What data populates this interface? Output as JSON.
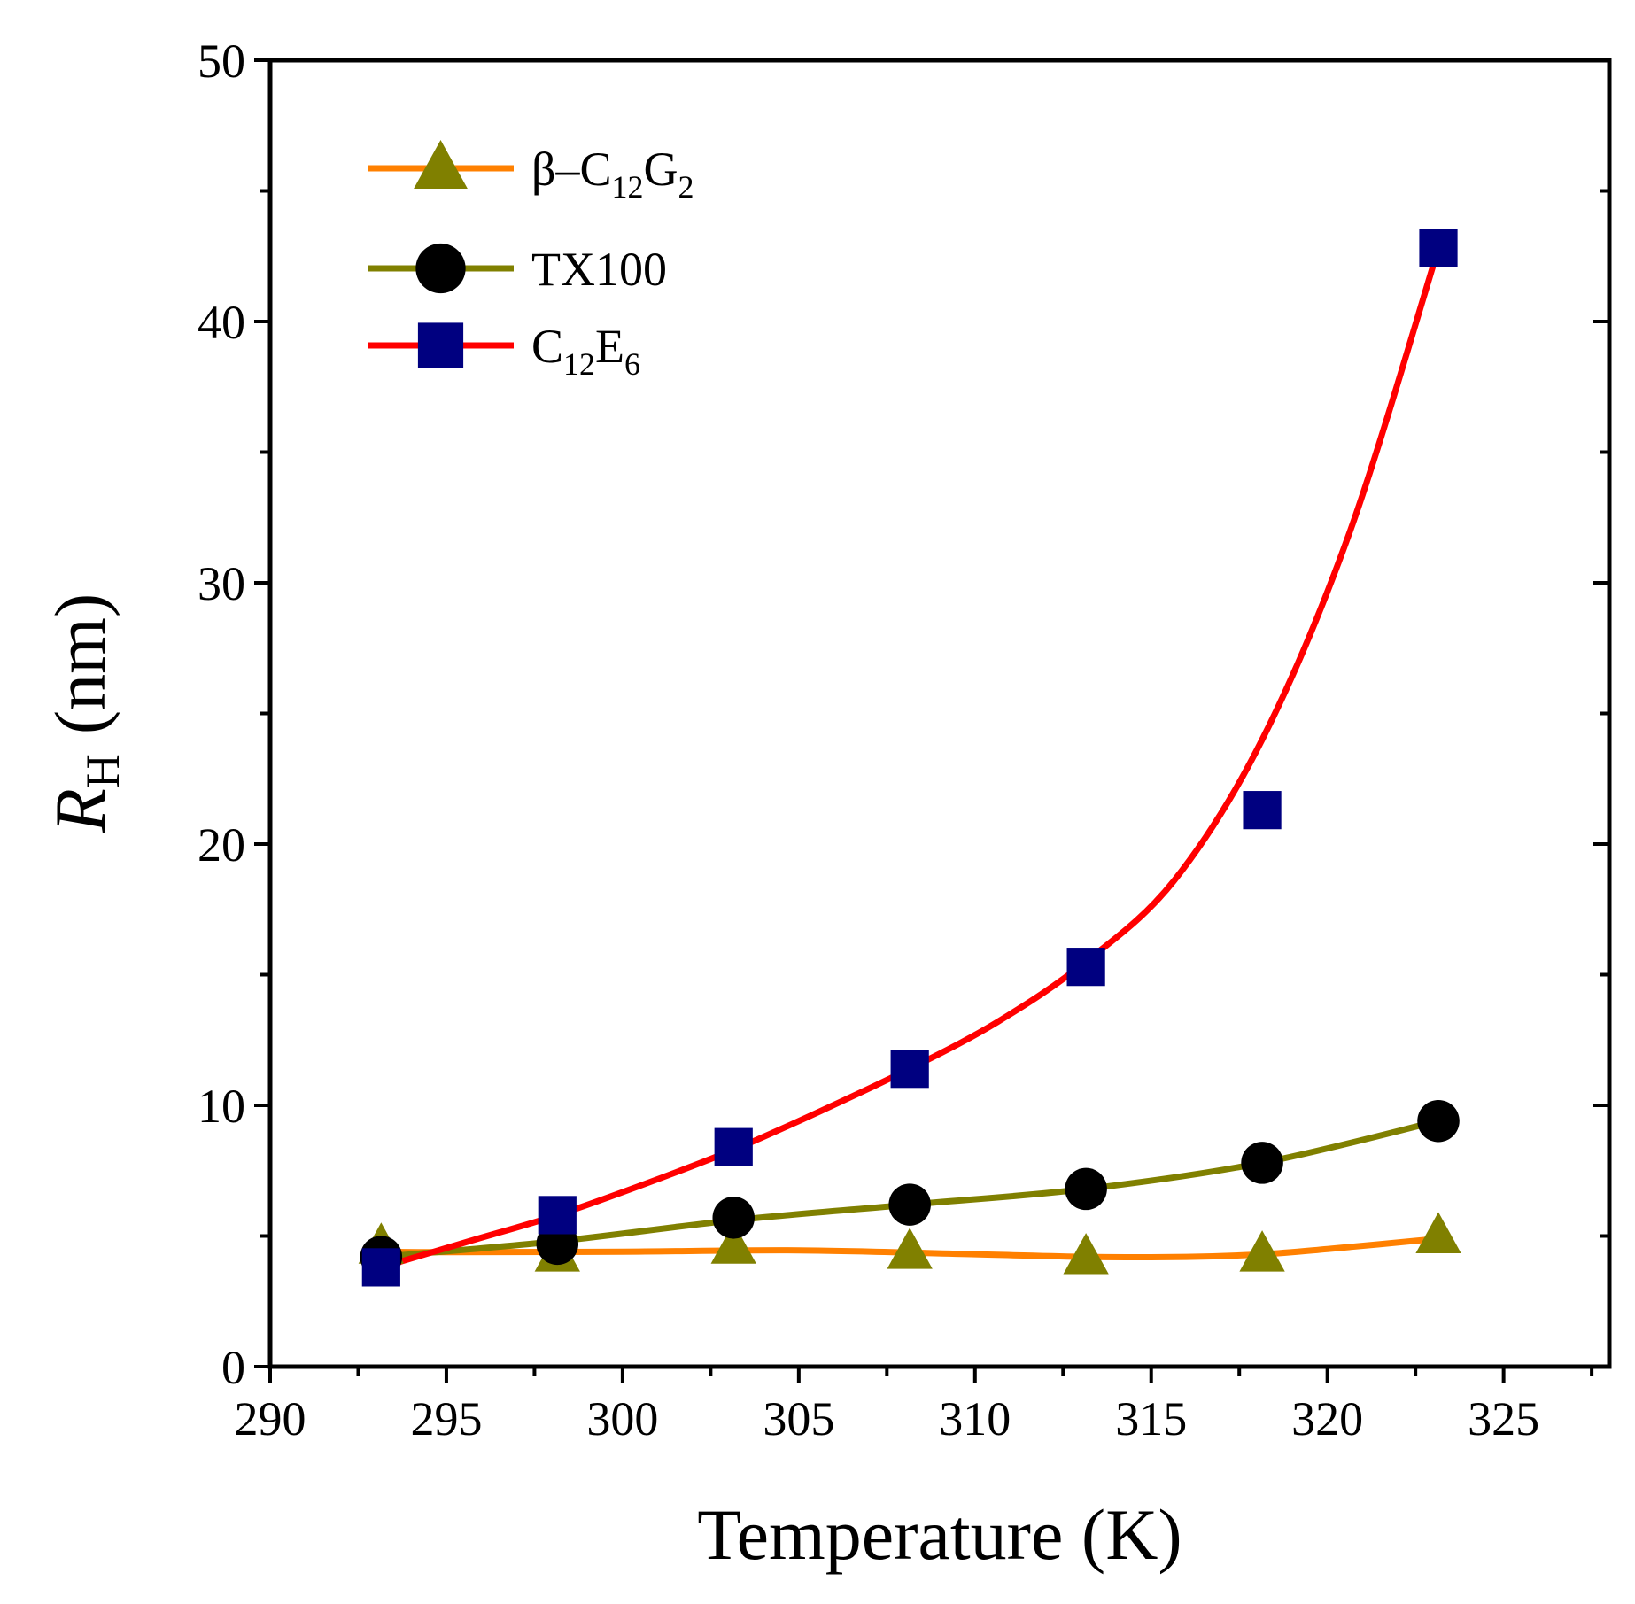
{
  "chart_data": {
    "type": "line",
    "xlabel": "Temperature (K)",
    "ylabel": {
      "main": "R",
      "sub": "H",
      "unit": "(nm)"
    },
    "xlim": [
      290,
      328
    ],
    "ylim": [
      0,
      50
    ],
    "xticks": [
      290,
      295,
      300,
      305,
      310,
      315,
      320,
      325
    ],
    "yticks": [
      0,
      10,
      20,
      30,
      40,
      50
    ],
    "x": [
      293.15,
      298.15,
      303.15,
      308.15,
      313.15,
      318.15,
      323.15
    ],
    "legend_position": "top-left",
    "series": [
      {
        "name": "β–C12G2",
        "legend": {
          "base": "β–C",
          "sub1": "12",
          "mid": "G",
          "sub2": "2"
        },
        "marker": "triangle",
        "marker_color": "#808000",
        "line_color": "#ff8000",
        "values": [
          4.6,
          4.3,
          4.6,
          4.4,
          4.2,
          4.3,
          5.0
        ],
        "fit": [
          [
            293.15,
            4.4
          ],
          [
            295,
            4.38
          ],
          [
            300,
            4.4
          ],
          [
            305,
            4.45
          ],
          [
            310,
            4.3
          ],
          [
            313.15,
            4.2
          ],
          [
            316,
            4.2
          ],
          [
            318.15,
            4.3
          ],
          [
            320,
            4.5
          ],
          [
            323.15,
            4.9
          ]
        ]
      },
      {
        "name": "TX100",
        "legend": {
          "base": "TX100",
          "sub1": "",
          "mid": "",
          "sub2": ""
        },
        "marker": "circle",
        "marker_color": "#000000",
        "line_color": "#808000",
        "values": [
          4.2,
          4.7,
          5.7,
          6.2,
          6.8,
          7.8,
          9.4
        ],
        "fit": [
          [
            293.15,
            4.2
          ],
          [
            298.15,
            4.8
          ],
          [
            303.15,
            5.6
          ],
          [
            308.15,
            6.2
          ],
          [
            313.15,
            6.8
          ],
          [
            318.15,
            7.8
          ],
          [
            323.15,
            9.4
          ]
        ]
      },
      {
        "name": "C12E6",
        "legend": {
          "base": "C",
          "sub1": "12",
          "mid": "E",
          "sub2": "6"
        },
        "marker": "square",
        "marker_color": "#000080",
        "line_color": "#ff0000",
        "values": [
          3.8,
          5.8,
          8.4,
          11.4,
          15.3,
          21.3,
          42.8
        ],
        "fit": [
          [
            293.15,
            3.8
          ],
          [
            295.65,
            4.8
          ],
          [
            298.15,
            5.8
          ],
          [
            300.65,
            7.0
          ],
          [
            303.15,
            8.3
          ],
          [
            305.65,
            9.8
          ],
          [
            308.15,
            11.4
          ],
          [
            310.65,
            13.2
          ],
          [
            313.15,
            15.5
          ],
          [
            315.65,
            18.6
          ],
          [
            318.15,
            24.0
          ],
          [
            320.65,
            32.0
          ],
          [
            323.15,
            42.8
          ]
        ]
      }
    ]
  }
}
